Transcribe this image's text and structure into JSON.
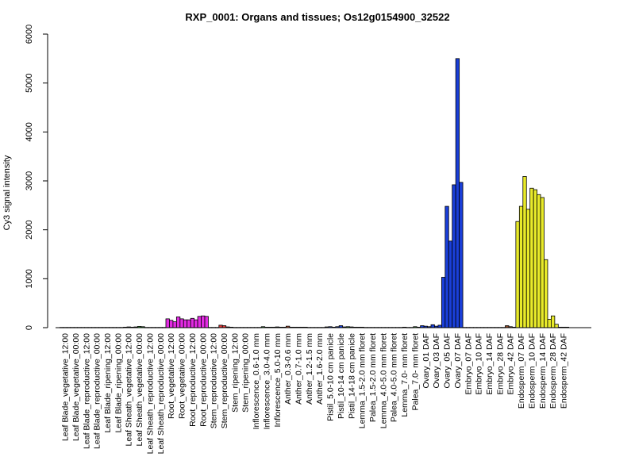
{
  "chart_data": {
    "type": "bar",
    "title": "RXP_0001: Organs and tissues; Os12g0154900_32522",
    "xlabel": "",
    "ylabel": "Cy3 signal intensity",
    "ylim": [
      0,
      6000
    ],
    "yticks": [
      0,
      1000,
      2000,
      3000,
      4000,
      5000,
      6000
    ],
    "grid": false,
    "colors": {
      "leaf": "#a6a6a6",
      "root": "#e22be2",
      "stem": "#e23a3a",
      "inflorescence": "#2fa02f",
      "reproductive": "#c06040",
      "ovary": "#1a3fd9",
      "embryo": "#8b4a2a",
      "endosperm": "#e8ea2a"
    },
    "groups": [
      {
        "label": "Leaf Blade_vegetative_12:00",
        "color": "leaf",
        "values": [
          5,
          5,
          5
        ]
      },
      {
        "label": "Leaf Blade_vegetative_00:00",
        "color": "leaf",
        "values": [
          5,
          5,
          5
        ]
      },
      {
        "label": "Leaf Blade_reproductive_12:00",
        "color": "leaf",
        "values": [
          5,
          5,
          5
        ]
      },
      {
        "label": "Leaf Blade_reproductive_00:00",
        "color": "leaf",
        "values": [
          5,
          5,
          5
        ]
      },
      {
        "label": "Leaf Blade_ripening_12:00",
        "color": "leaf",
        "values": [
          5,
          5,
          5
        ]
      },
      {
        "label": "Leaf Blade_ripening_00:00",
        "color": "leaf",
        "values": [
          5,
          5,
          5
        ]
      },
      {
        "label": "Leaf Sheath_vegetative_12:00",
        "color": "inflorescence",
        "values": [
          10,
          15,
          10
        ]
      },
      {
        "label": "Leaf Sheath_vegetative_00:00",
        "color": "inflorescence",
        "values": [
          15,
          25,
          20
        ]
      },
      {
        "label": "Leaf Sheath_reproductive_12:00",
        "color": "leaf",
        "values": [
          5,
          5,
          5
        ]
      },
      {
        "label": "Leaf Sheath_reproductive_00:00",
        "color": "leaf",
        "values": [
          5,
          5,
          5
        ]
      },
      {
        "label": "Root_vegetative_12:00",
        "color": "root",
        "values": [
          180,
          150,
          120
        ]
      },
      {
        "label": "Root_vegetative_00:00",
        "color": "root",
        "values": [
          220,
          180,
          160
        ]
      },
      {
        "label": "Root_reproductive_12:00",
        "color": "root",
        "values": [
          160,
          190,
          160
        ]
      },
      {
        "label": "Root_reproductive_00:00",
        "color": "root",
        "values": [
          230,
          240,
          230
        ]
      },
      {
        "label": "Stem_reproductive_12:00",
        "color": "stem",
        "values": [
          5,
          5,
          5
        ]
      },
      {
        "label": "Stem_reproductive_00:00",
        "color": "stem",
        "values": [
          50,
          40,
          15
        ]
      },
      {
        "label": "Stem_ripening_12:00",
        "color": "stem",
        "values": [
          10,
          5,
          5
        ]
      },
      {
        "label": "Stem_ripening_00:00",
        "color": "stem",
        "values": [
          5,
          5,
          5
        ]
      },
      {
        "label": "Inflorescence_0.6-1.0 mm",
        "color": "inflorescence",
        "values": [
          5,
          5,
          5
        ]
      },
      {
        "label": "Inflorescence_3.0-4.0 mm",
        "color": "inflorescence",
        "values": [
          20,
          10,
          10
        ]
      },
      {
        "label": "Inflorescence_5.0-10 mm",
        "color": "inflorescence",
        "values": [
          10,
          15,
          10
        ]
      },
      {
        "label": "Anther_0.3-0.6 mm",
        "color": "reproductive",
        "values": [
          10,
          30,
          10
        ]
      },
      {
        "label": "Anther_0.7-1.0 mm",
        "color": "reproductive",
        "values": [
          10,
          10,
          10
        ]
      },
      {
        "label": "Anther_1.2-1.5 mm",
        "color": "reproductive",
        "values": [
          10,
          5,
          5
        ]
      },
      {
        "label": "Anther_1.6-2.0 mm",
        "color": "reproductive",
        "values": [
          5,
          5,
          5
        ]
      },
      {
        "label": "Pistil_5.0-10 cm panicle",
        "color": "ovary",
        "values": [
          15,
          20,
          10
        ]
      },
      {
        "label": "Pistil_10-14 cm panicle",
        "color": "ovary",
        "values": [
          20,
          40,
          15
        ]
      },
      {
        "label": "Pistil_14-18 cm panicle",
        "color": "inflorescence",
        "values": [
          20,
          15,
          10
        ]
      },
      {
        "label": "Lemma_1.5-2.0 mm floret",
        "color": "inflorescence",
        "values": [
          10,
          10,
          5
        ]
      },
      {
        "label": "Palea_1.5-2.0 mm floret",
        "color": "inflorescence",
        "values": [
          5,
          5,
          5
        ]
      },
      {
        "label": "Lemma_4.0-5.0 mm floret",
        "color": "inflorescence",
        "values": [
          5,
          5,
          5
        ]
      },
      {
        "label": "Palea_4.0-5.0 mm floret",
        "color": "inflorescence",
        "values": [
          5,
          5,
          5
        ]
      },
      {
        "label": "Lemma_7.0- mm floret",
        "color": "inflorescence",
        "values": [
          5,
          10,
          5
        ]
      },
      {
        "label": "Palea_7.0- mm floret",
        "color": "inflorescence",
        "values": [
          5,
          20,
          10
        ]
      },
      {
        "label": "Ovary_01 DAF",
        "color": "ovary",
        "values": [
          40,
          30,
          20
        ]
      },
      {
        "label": "Ovary_03 DAF",
        "color": "ovary",
        "values": [
          60,
          30,
          50
        ]
      },
      {
        "label": "Ovary_05 DAF",
        "color": "ovary",
        "values": [
          1030,
          2480,
          1770
        ]
      },
      {
        "label": "Ovary_07 DAF",
        "color": "ovary",
        "values": [
          2920,
          5500,
          2970
        ]
      },
      {
        "label": "Embryo_07 DAF",
        "color": "leaf",
        "values": [
          5,
          5,
          5
        ]
      },
      {
        "label": "Embryo_10 DAF",
        "color": "leaf",
        "values": [
          5,
          5,
          5
        ]
      },
      {
        "label": "Embryo_14 DAF",
        "color": "leaf",
        "values": [
          5,
          5,
          5
        ]
      },
      {
        "label": "Embryo_28 DAF",
        "color": "leaf",
        "values": [
          5,
          5,
          5
        ]
      },
      {
        "label": "Embryo_42 DAF",
        "color": "embryo",
        "values": [
          40,
          20,
          10
        ]
      },
      {
        "label": "Endosperm_07 DAF",
        "color": "endosperm",
        "values": [
          2170,
          2480,
          3090
        ]
      },
      {
        "label": "Endosperm_10 DAF",
        "color": "endosperm",
        "values": [
          2420,
          2850,
          2820
        ]
      },
      {
        "label": "Endosperm_14 DAF",
        "color": "endosperm",
        "values": [
          2720,
          2660,
          1390
        ]
      },
      {
        "label": "Endosperm_28 DAF",
        "color": "endosperm",
        "values": [
          170,
          240,
          70
        ]
      },
      {
        "label": "Endosperm_42 DAF",
        "color": "endosperm",
        "values": [
          10,
          10,
          10
        ]
      }
    ]
  }
}
